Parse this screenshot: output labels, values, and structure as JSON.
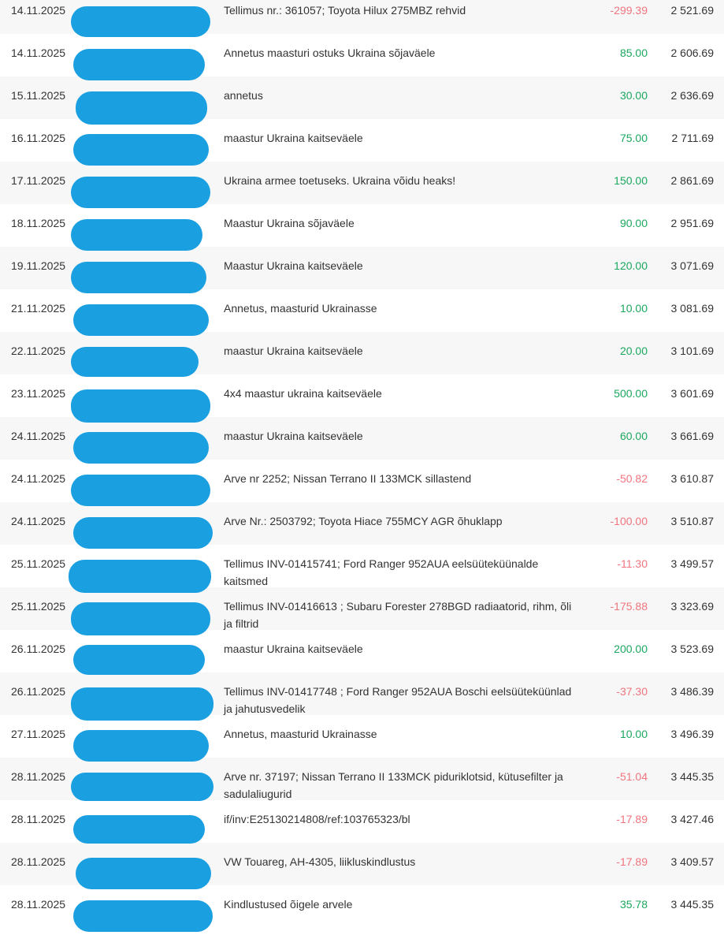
{
  "colors": {
    "credit_amount": "#1ca75f",
    "debit_amount": "#f0757e",
    "text": "#333333",
    "row_stripe": "#f7f7f7",
    "redaction_blob": "#1a9fe1"
  },
  "table": {
    "transactions": [
      {
        "date": "14.11.2025",
        "counterparty_redacted": true,
        "description": "Tellimus nr.: 361057; Toyota Hilux 275MBZ rehvid",
        "amount": "-299.39",
        "balance": "2 521.69"
      },
      {
        "date": "14.11.2025",
        "counterparty_redacted": true,
        "description": "Annetus maasturi ostuks Ukraina sõjaväele",
        "amount": "85.00",
        "balance": "2 606.69"
      },
      {
        "date": "15.11.2025",
        "counterparty_redacted": true,
        "description": "annetus",
        "amount": "30.00",
        "balance": "2 636.69"
      },
      {
        "date": "16.11.2025",
        "counterparty_redacted": true,
        "description": "maastur Ukraina kaitseväele",
        "amount": "75.00",
        "balance": "2 711.69"
      },
      {
        "date": "17.11.2025",
        "counterparty_redacted": true,
        "description": "Ukraina armee toetuseks. Ukraina võidu heaks!",
        "amount": "150.00",
        "balance": "2 861.69"
      },
      {
        "date": "18.11.2025",
        "counterparty_redacted": true,
        "description": "Maastur Ukraina sõjaväele",
        "amount": "90.00",
        "balance": "2 951.69"
      },
      {
        "date": "19.11.2025",
        "counterparty_redacted": true,
        "description": "Maastur Ukraina kaitseväele",
        "amount": "120.00",
        "balance": "3 071.69"
      },
      {
        "date": "21.11.2025",
        "counterparty_redacted": true,
        "description": "Annetus, maasturid Ukrainasse",
        "amount": "10.00",
        "balance": "3 081.69"
      },
      {
        "date": "22.11.2025",
        "counterparty_redacted": true,
        "description": "maastur Ukraina kaitseväele",
        "amount": "20.00",
        "balance": "3 101.69"
      },
      {
        "date": "23.11.2025",
        "counterparty_redacted": true,
        "description": "4x4 maastur ukraina kaitseväele",
        "amount": "500.00",
        "balance": "3 601.69"
      },
      {
        "date": "24.11.2025",
        "counterparty_redacted": true,
        "description": "maastur Ukraina kaitseväele",
        "amount": "60.00",
        "balance": "3 661.69"
      },
      {
        "date": "24.11.2025",
        "counterparty_redacted": true,
        "description": "Arve nr 2252; Nissan Terrano II 133MCK sillastend",
        "amount": "-50.82",
        "balance": "3 610.87"
      },
      {
        "date": "24.11.2025",
        "counterparty_redacted": true,
        "description": "Arve Nr.: 2503792; Toyota Hiace 755MCY AGR õhuklapp",
        "amount": "-100.00",
        "balance": "3 510.87"
      },
      {
        "date": "25.11.2025",
        "counterparty_redacted": true,
        "description": "Tellimus INV-01415741; Ford Ranger 952AUA eelsüüteküünalde\nkaitsmed",
        "amount": "-11.30",
        "balance": "3 499.57"
      },
      {
        "date": "25.11.2025",
        "counterparty_redacted": true,
        "description": "Tellimus INV-01416613 ; Subaru Forester 278BGD radiaatorid, rihm, õli\nja filtrid",
        "amount": "-175.88",
        "balance": "3 323.69"
      },
      {
        "date": "26.11.2025",
        "counterparty_redacted": true,
        "description": "maastur Ukraina kaitseväele",
        "amount": "200.00",
        "balance": "3 523.69"
      },
      {
        "date": "26.11.2025",
        "counterparty_redacted": true,
        "description": "Tellimus INV-01417748 ; Ford Ranger 952AUA Boschi eelsüüteküünlad\nja jahutusvedelik",
        "amount": "-37.30",
        "balance": "3 486.39"
      },
      {
        "date": "27.11.2025",
        "counterparty_redacted": true,
        "description": "Annetus, maasturid Ukrainasse",
        "amount": "10.00",
        "balance": "3 496.39"
      },
      {
        "date": "28.11.2025",
        "counterparty_redacted": true,
        "description": "Arve nr. 37197; Nissan Terrano II 133MCK piduriklotsid, kütusefilter ja\nsadulaliugurid",
        "amount": "-51.04",
        "balance": "3 445.35"
      },
      {
        "date": "28.11.2025",
        "counterparty_redacted": true,
        "description": "if/inv:E25130214808/ref:103765323/bl",
        "amount": "-17.89",
        "balance": "3 427.46"
      },
      {
        "date": "28.11.2025",
        "counterparty_redacted": true,
        "description": "VW Touareg, AH-4305, liikluskindlustus",
        "amount": "-17.89",
        "balance": "3 409.57"
      },
      {
        "date": "28.11.2025",
        "counterparty_redacted": true,
        "description": "Kindlustused õigele arvele",
        "amount": "35.78",
        "balance": "3 445.35"
      }
    ]
  }
}
